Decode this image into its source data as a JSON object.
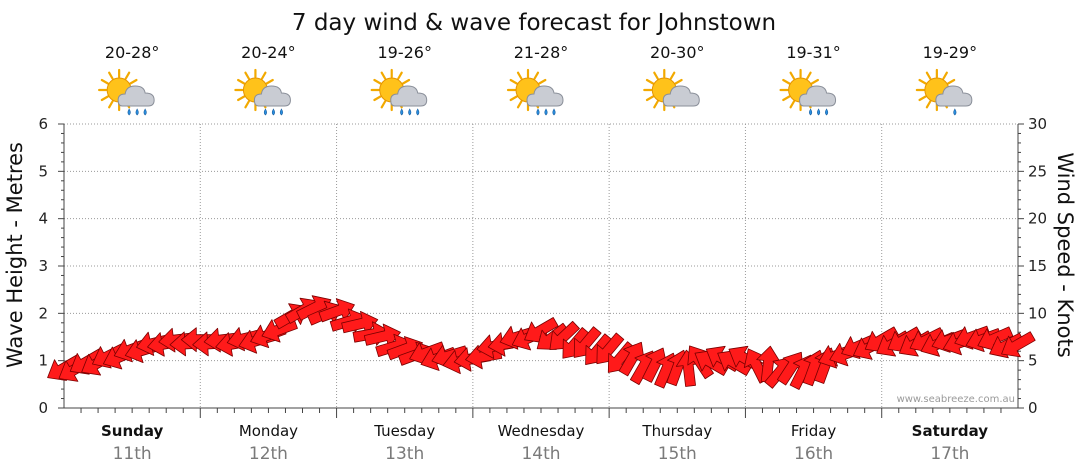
{
  "title": "7 day wind & wave forecast for Johnstown",
  "watermark": "www.seabreeze.com.au",
  "colors": {
    "arrow": "#ff1a1a",
    "arrow_stroke": "#7a0000",
    "grid": "#9a9a9a",
    "axis": "#444444",
    "daynum": "#7a7a7a"
  },
  "days": [
    {
      "name": "Sunday",
      "date": "11th",
      "temp": "20-28°",
      "icon": "sun-cloud-rain-icon",
      "bold": true
    },
    {
      "name": "Monday",
      "date": "12th",
      "temp": "20-24°",
      "icon": "sun-cloud-rain-icon",
      "bold": false
    },
    {
      "name": "Tuesday",
      "date": "13th",
      "temp": "19-26°",
      "icon": "sun-cloud-rain-icon",
      "bold": false
    },
    {
      "name": "Wednesday",
      "date": "14th",
      "temp": "21-28°",
      "icon": "sun-cloud-rain-icon",
      "bold": false
    },
    {
      "name": "Thursday",
      "date": "15th",
      "temp": "20-30°",
      "icon": "sun-cloud-icon",
      "bold": false
    },
    {
      "name": "Friday",
      "date": "16th",
      "temp": "19-31°",
      "icon": "sun-cloud-rain-icon",
      "bold": false
    },
    {
      "name": "Saturday",
      "date": "17th",
      "temp": "19-29°",
      "icon": "sun-cloud-shower-icon",
      "bold": true
    }
  ],
  "chart_data": {
    "type": "line",
    "ylabel_left": "Wave Height - Metres",
    "ylabel_right": "Wind Speed - Knots",
    "y_left_lim": [
      0,
      6
    ],
    "y_left_ticks": [
      "0",
      "1",
      "2",
      "3",
      "4",
      "5",
      "6"
    ],
    "y_right_lim": [
      0,
      30
    ],
    "y_right_ticks": [
      "0",
      "5",
      "10",
      "15",
      "20",
      "25",
      "30"
    ],
    "x_days": 7,
    "grid": true,
    "series": [
      {
        "marker": "wind-direction-arrow",
        "x_day": [
          0.0,
          0.25,
          0.5,
          0.75,
          1.0,
          1.25,
          1.5,
          1.75,
          2.0,
          2.25,
          2.5,
          2.75,
          3.0,
          3.25,
          3.5,
          3.75,
          4.0,
          4.25,
          4.5,
          4.75,
          5.0,
          5.25,
          5.5,
          5.75,
          6.0,
          6.25,
          6.5,
          6.75,
          7.0
        ],
        "wind_knots": [
          4,
          5,
          6,
          7,
          7,
          7,
          7.5,
          10.5,
          10,
          8,
          6,
          5.5,
          5,
          7,
          8,
          7,
          6,
          4.5,
          4,
          5,
          5,
          4,
          4,
          6,
          7,
          7,
          7,
          7.5,
          6.5
        ],
        "direction_deg": [
          60,
          60,
          70,
          80,
          90,
          80,
          70,
          240,
          250,
          260,
          250,
          70,
          80,
          80,
          60,
          40,
          40,
          210,
          200,
          120,
          120,
          220,
          200,
          70,
          60,
          60,
          70,
          70,
          60
        ]
      }
    ]
  }
}
